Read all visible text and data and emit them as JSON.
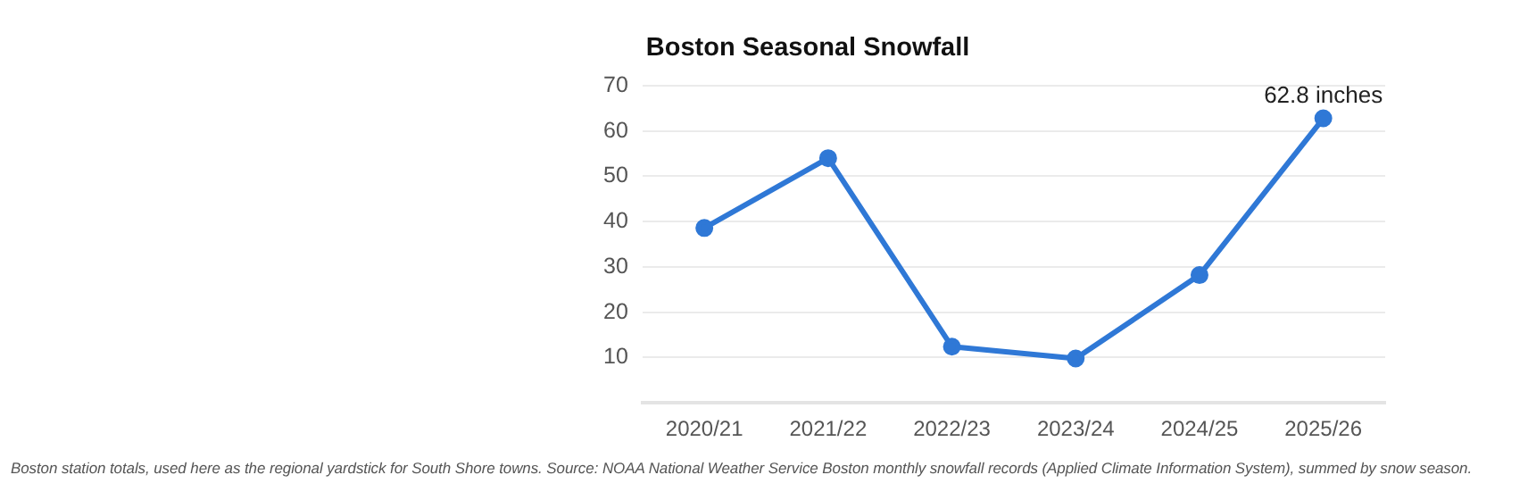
{
  "chart_data": {
    "type": "line",
    "title": "Boston Seasonal Snowfall",
    "categories": [
      "2020/21",
      "2021/22",
      "2022/23",
      "2023/24",
      "2024/25",
      "2025/26"
    ],
    "series": [
      {
        "color": "#2f78d6",
        "values": [
          38.6,
          54.0,
          12.4,
          9.8,
          28.2,
          62.8
        ]
      }
    ],
    "ylim": [
      0,
      70
    ],
    "yticks": [
      10,
      20,
      30,
      40,
      50,
      60,
      70
    ],
    "grid": "y",
    "legend": false,
    "marker": "circle",
    "annotations": [
      {
        "text": "62.8 inches",
        "x": "2025/26",
        "y": 62.8
      },
      "Boston station totals, used here as the regional yardstick for South Shore towns. Source: NOAA National Weather Service Boston monthly snowfall records (Applied Climate Information System), summed by snow season."
    ]
  }
}
